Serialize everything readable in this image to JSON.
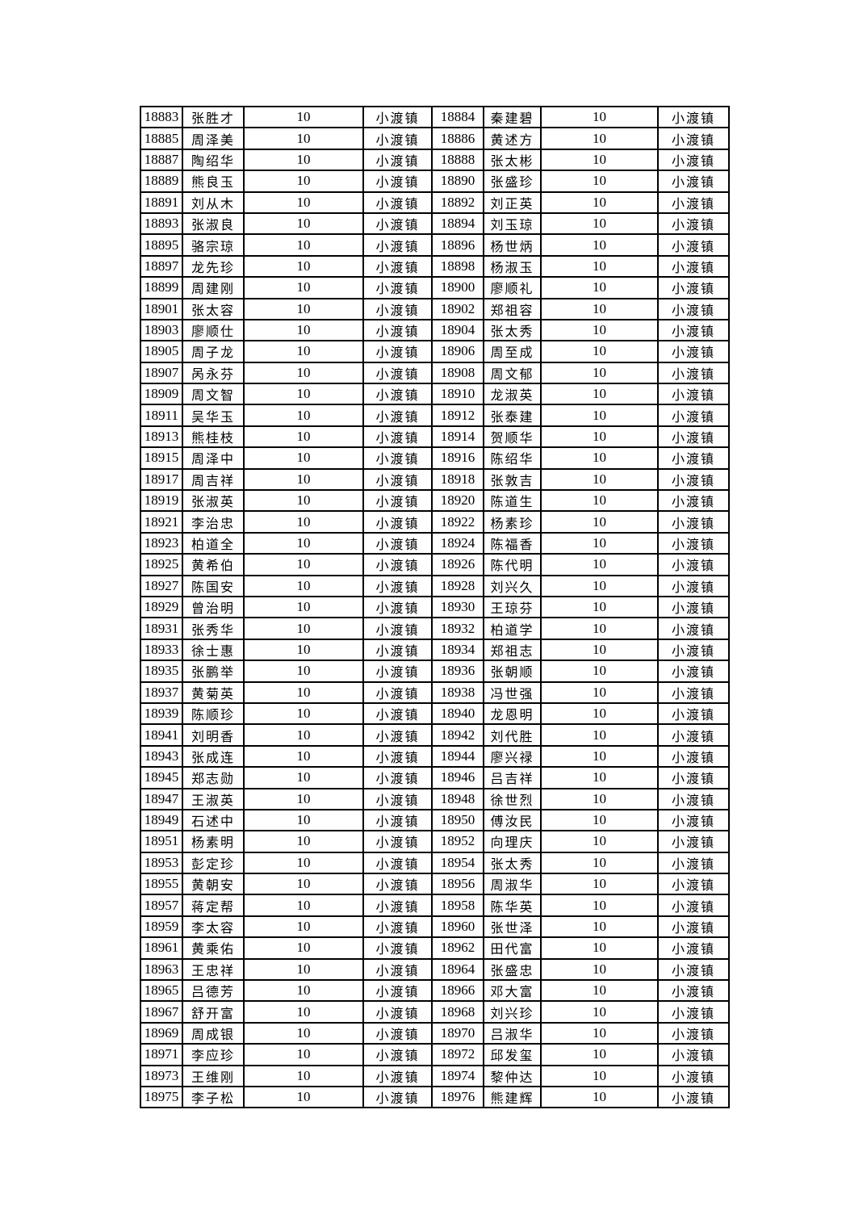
{
  "page": {
    "background_color": "#ffffff",
    "text_color": "#000000",
    "border_color": "#000000"
  },
  "table": {
    "column_kinds": [
      "record-id",
      "person-name",
      "points",
      "town",
      "record-id",
      "person-name",
      "points",
      "town"
    ],
    "rows": [
      [
        "18883",
        "张胜才",
        "10",
        "小渡镇",
        "18884",
        "秦建碧",
        "10",
        "小渡镇"
      ],
      [
        "18885",
        "周泽美",
        "10",
        "小渡镇",
        "18886",
        "黄述方",
        "10",
        "小渡镇"
      ],
      [
        "18887",
        "陶绍华",
        "10",
        "小渡镇",
        "18888",
        "张太彬",
        "10",
        "小渡镇"
      ],
      [
        "18889",
        "熊良玉",
        "10",
        "小渡镇",
        "18890",
        "张盛珍",
        "10",
        "小渡镇"
      ],
      [
        "18891",
        "刘从木",
        "10",
        "小渡镇",
        "18892",
        "刘正英",
        "10",
        "小渡镇"
      ],
      [
        "18893",
        "张淑良",
        "10",
        "小渡镇",
        "18894",
        "刘玉琼",
        "10",
        "小渡镇"
      ],
      [
        "18895",
        "骆宗琼",
        "10",
        "小渡镇",
        "18896",
        "杨世炳",
        "10",
        "小渡镇"
      ],
      [
        "18897",
        "龙先珍",
        "10",
        "小渡镇",
        "18898",
        "杨淑玉",
        "10",
        "小渡镇"
      ],
      [
        "18899",
        "周建刚",
        "10",
        "小渡镇",
        "18900",
        "廖顺礼",
        "10",
        "小渡镇"
      ],
      [
        "18901",
        "张太容",
        "10",
        "小渡镇",
        "18902",
        "郑祖容",
        "10",
        "小渡镇"
      ],
      [
        "18903",
        "廖顺仕",
        "10",
        "小渡镇",
        "18904",
        "张太秀",
        "10",
        "小渡镇"
      ],
      [
        "18905",
        "周子龙",
        "10",
        "小渡镇",
        "18906",
        "周至成",
        "10",
        "小渡镇"
      ],
      [
        "18907",
        "呙永芬",
        "10",
        "小渡镇",
        "18908",
        "周文郁",
        "10",
        "小渡镇"
      ],
      [
        "18909",
        "周文智",
        "10",
        "小渡镇",
        "18910",
        "龙淑英",
        "10",
        "小渡镇"
      ],
      [
        "18911",
        "吴华玉",
        "10",
        "小渡镇",
        "18912",
        "张泰建",
        "10",
        "小渡镇"
      ],
      [
        "18913",
        "熊桂枝",
        "10",
        "小渡镇",
        "18914",
        "贺顺华",
        "10",
        "小渡镇"
      ],
      [
        "18915",
        "周泽中",
        "10",
        "小渡镇",
        "18916",
        "陈绍华",
        "10",
        "小渡镇"
      ],
      [
        "18917",
        "周吉祥",
        "10",
        "小渡镇",
        "18918",
        "张敦吉",
        "10",
        "小渡镇"
      ],
      [
        "18919",
        "张淑英",
        "10",
        "小渡镇",
        "18920",
        "陈道生",
        "10",
        "小渡镇"
      ],
      [
        "18921",
        "李治忠",
        "10",
        "小渡镇",
        "18922",
        "杨素珍",
        "10",
        "小渡镇"
      ],
      [
        "18923",
        "柏道全",
        "10",
        "小渡镇",
        "18924",
        "陈福香",
        "10",
        "小渡镇"
      ],
      [
        "18925",
        "黄希伯",
        "10",
        "小渡镇",
        "18926",
        "陈代明",
        "10",
        "小渡镇"
      ],
      [
        "18927",
        "陈国安",
        "10",
        "小渡镇",
        "18928",
        "刘兴久",
        "10",
        "小渡镇"
      ],
      [
        "18929",
        "曾治明",
        "10",
        "小渡镇",
        "18930",
        "王琼芬",
        "10",
        "小渡镇"
      ],
      [
        "18931",
        "张秀华",
        "10",
        "小渡镇",
        "18932",
        "柏道学",
        "10",
        "小渡镇"
      ],
      [
        "18933",
        "徐士惠",
        "10",
        "小渡镇",
        "18934",
        "郑祖志",
        "10",
        "小渡镇"
      ],
      [
        "18935",
        "张鹏举",
        "10",
        "小渡镇",
        "18936",
        "张朝顺",
        "10",
        "小渡镇"
      ],
      [
        "18937",
        "黄菊英",
        "10",
        "小渡镇",
        "18938",
        "冯世强",
        "10",
        "小渡镇"
      ],
      [
        "18939",
        "陈顺珍",
        "10",
        "小渡镇",
        "18940",
        "龙恩明",
        "10",
        "小渡镇"
      ],
      [
        "18941",
        "刘明香",
        "10",
        "小渡镇",
        "18942",
        "刘代胜",
        "10",
        "小渡镇"
      ],
      [
        "18943",
        "张成连",
        "10",
        "小渡镇",
        "18944",
        "廖兴禄",
        "10",
        "小渡镇"
      ],
      [
        "18945",
        "郑志勋",
        "10",
        "小渡镇",
        "18946",
        "吕吉祥",
        "10",
        "小渡镇"
      ],
      [
        "18947",
        "王淑英",
        "10",
        "小渡镇",
        "18948",
        "徐世烈",
        "10",
        "小渡镇"
      ],
      [
        "18949",
        "石述中",
        "10",
        "小渡镇",
        "18950",
        "傅汝民",
        "10",
        "小渡镇"
      ],
      [
        "18951",
        "杨素明",
        "10",
        "小渡镇",
        "18952",
        "向理庆",
        "10",
        "小渡镇"
      ],
      [
        "18953",
        "彭定珍",
        "10",
        "小渡镇",
        "18954",
        "张太秀",
        "10",
        "小渡镇"
      ],
      [
        "18955",
        "黄朝安",
        "10",
        "小渡镇",
        "18956",
        "周淑华",
        "10",
        "小渡镇"
      ],
      [
        "18957",
        "蒋定帮",
        "10",
        "小渡镇",
        "18958",
        "陈华英",
        "10",
        "小渡镇"
      ],
      [
        "18959",
        "李太容",
        "10",
        "小渡镇",
        "18960",
        "张世泽",
        "10",
        "小渡镇"
      ],
      [
        "18961",
        "黄乘佑",
        "10",
        "小渡镇",
        "18962",
        "田代富",
        "10",
        "小渡镇"
      ],
      [
        "18963",
        "王忠祥",
        "10",
        "小渡镇",
        "18964",
        "张盛忠",
        "10",
        "小渡镇"
      ],
      [
        "18965",
        "吕德芳",
        "10",
        "小渡镇",
        "18966",
        "邓大富",
        "10",
        "小渡镇"
      ],
      [
        "18967",
        "舒开富",
        "10",
        "小渡镇",
        "18968",
        "刘兴珍",
        "10",
        "小渡镇"
      ],
      [
        "18969",
        "周成银",
        "10",
        "小渡镇",
        "18970",
        "吕淑华",
        "10",
        "小渡镇"
      ],
      [
        "18971",
        "李应珍",
        "10",
        "小渡镇",
        "18972",
        "邱发玺",
        "10",
        "小渡镇"
      ],
      [
        "18973",
        "王维刚",
        "10",
        "小渡镇",
        "18974",
        "黎仲达",
        "10",
        "小渡镇"
      ],
      [
        "18975",
        "李子松",
        "10",
        "小渡镇",
        "18976",
        "熊建辉",
        "10",
        "小渡镇"
      ]
    ]
  }
}
